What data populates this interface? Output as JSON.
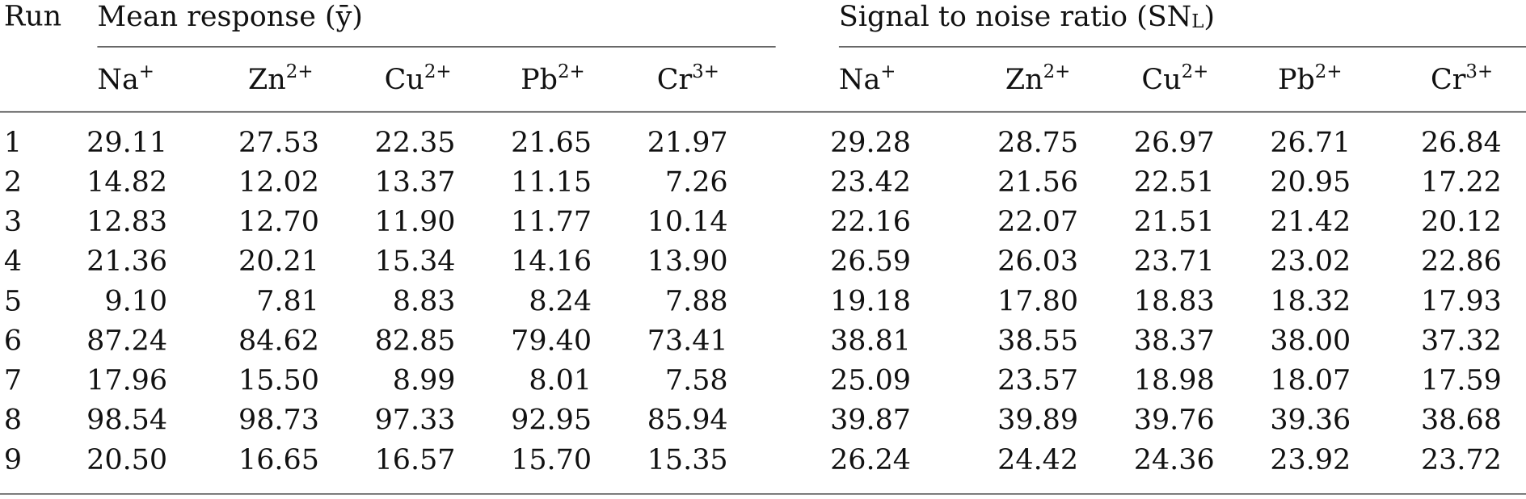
{
  "table": {
    "run_header": "Run",
    "groups": [
      {
        "title": "Mean response (ȳ)",
        "columns": [
          {
            "base": "Na",
            "sup": "+"
          },
          {
            "base": "Zn",
            "sup": "2+"
          },
          {
            "base": "Cu",
            "sup": "2+"
          },
          {
            "base": "Pb",
            "sup": "2+"
          },
          {
            "base": "Cr",
            "sup": "3+"
          }
        ]
      },
      {
        "title": "Signal to noise ratio (SN",
        "title_sub": "L",
        "title_end": ")",
        "columns": [
          {
            "base": "Na",
            "sup": "+"
          },
          {
            "base": "Zn",
            "sup": "2+"
          },
          {
            "base": "Cu",
            "sup": "2+"
          },
          {
            "base": "Pb",
            "sup": "2+"
          },
          {
            "base": "Cr",
            "sup": "3+"
          }
        ]
      }
    ],
    "rows": [
      [
        "1",
        "29.11",
        "27.53",
        "22.35",
        "21.65",
        "21.97",
        "29.28",
        "28.75",
        "26.97",
        "26.71",
        "26.84"
      ],
      [
        "2",
        "14.82",
        "12.02",
        "13.37",
        "11.15",
        "7.26",
        "23.42",
        "21.56",
        "22.51",
        "20.95",
        "17.22"
      ],
      [
        "3",
        "12.83",
        "12.70",
        "11.90",
        "11.77",
        "10.14",
        "22.16",
        "22.07",
        "21.51",
        "21.42",
        "20.12"
      ],
      [
        "4",
        "21.36",
        "20.21",
        "15.34",
        "14.16",
        "13.90",
        "26.59",
        "26.03",
        "23.71",
        "23.02",
        "22.86"
      ],
      [
        "5",
        "9.10",
        "7.81",
        "8.83",
        "8.24",
        "7.88",
        "19.18",
        "17.80",
        "18.83",
        "18.32",
        "17.93"
      ],
      [
        "6",
        "87.24",
        "84.62",
        "82.85",
        "79.40",
        "73.41",
        "38.81",
        "38.55",
        "38.37",
        "38.00",
        "37.32"
      ],
      [
        "7",
        "17.96",
        "15.50",
        "8.99",
        "8.01",
        "7.58",
        "25.09",
        "23.57",
        "18.98",
        "18.07",
        "17.59"
      ],
      [
        "8",
        "98.54",
        "98.73",
        "97.33",
        "92.95",
        "85.94",
        "39.87",
        "39.89",
        "39.76",
        "39.36",
        "38.68"
      ],
      [
        "9",
        "20.50",
        "16.65",
        "16.57",
        "15.70",
        "15.35",
        "26.24",
        "24.42",
        "24.36",
        "23.92",
        "23.72"
      ]
    ]
  }
}
